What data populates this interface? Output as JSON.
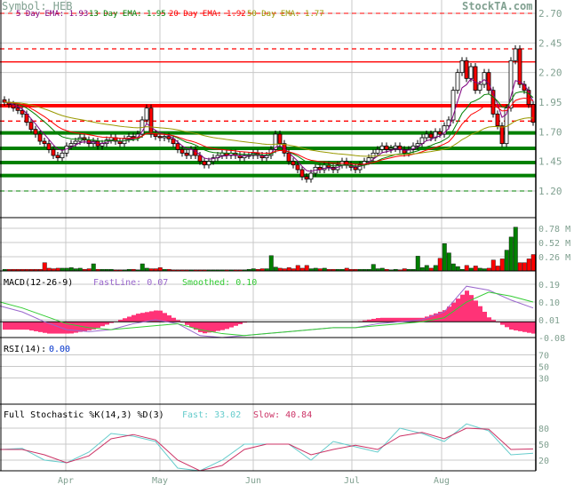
{
  "header": {
    "symbol": "Symbol: HEB",
    "brand": "StockTA.com",
    "ema5": "5 Day EMA: 1.93",
    "ema13": "13 Day EMA: 1.95",
    "ema20": "20 Day EMA: 1.92",
    "ema50": "50 Day EMA: 1.77"
  },
  "colors": {
    "ema5": "#800080",
    "ema13": "#008000",
    "ema20": "#ff0000",
    "ema50": "#999900",
    "down": "#ff0000",
    "up_volume": "#008000",
    "axis_text": "#80a090",
    "fast": "#66cccc",
    "slow": "#cc3366",
    "macd_fast": "#9966cc",
    "macd_slow": "#33cc33",
    "histogram": "#ff3377"
  },
  "chart_data": [
    {
      "type": "candlestick",
      "name": "price",
      "ylim": [
        1.2,
        2.7
      ],
      "ticks": [
        "2.70",
        "2.45",
        "2.20",
        "1.95",
        "1.70",
        "1.45",
        "1.20"
      ],
      "resistance_lines": [
        2.4,
        2.29,
        1.92,
        1.79
      ],
      "support_lines": [
        1.69,
        1.56,
        1.44,
        1.33,
        1.2
      ],
      "close": [
        1.95,
        1.93,
        1.9,
        1.88,
        1.85,
        1.78,
        1.72,
        1.68,
        1.62,
        1.6,
        1.55,
        1.5,
        1.48,
        1.52,
        1.58,
        1.6,
        1.62,
        1.65,
        1.63,
        1.6,
        1.62,
        1.58,
        1.6,
        1.63,
        1.65,
        1.62,
        1.6,
        1.64,
        1.66,
        1.65,
        1.68,
        1.8,
        1.9,
        1.68,
        1.66,
        1.65,
        1.66,
        1.64,
        1.6,
        1.55,
        1.52,
        1.5,
        1.55,
        1.5,
        1.45,
        1.42,
        1.45,
        1.48,
        1.5,
        1.52,
        1.5,
        1.52,
        1.5,
        1.48,
        1.5,
        1.5,
        1.52,
        1.5,
        1.48,
        1.5,
        1.55,
        1.68,
        1.6,
        1.52,
        1.45,
        1.42,
        1.38,
        1.32,
        1.3,
        1.35,
        1.4,
        1.38,
        1.42,
        1.4,
        1.38,
        1.42,
        1.45,
        1.42,
        1.4,
        1.38,
        1.42,
        1.45,
        1.48,
        1.52,
        1.55,
        1.58,
        1.55,
        1.56,
        1.58,
        1.55,
        1.52,
        1.55,
        1.58,
        1.6,
        1.65,
        1.68,
        1.65,
        1.7,
        1.68,
        1.75,
        1.8,
        2.05,
        2.2,
        2.3,
        2.15,
        2.25,
        2.05,
        2.1,
        2.2,
        2.05,
        1.85,
        1.75,
        1.6,
        1.9,
        2.3,
        2.4,
        2.1,
        2.05,
        1.93,
        1.78
      ]
    },
    {
      "type": "bar",
      "name": "volume",
      "unit": "M",
      "ylim": [
        0,
        0.85
      ],
      "ticks": [
        "0.78 M",
        "0.52 M",
        "0.26 M"
      ],
      "values": [
        0.03,
        0.03,
        0.03,
        0.03,
        0.03,
        0.03,
        0.03,
        0.03,
        0.03,
        0.15,
        0.05,
        0.04,
        0.05,
        0.05,
        0.05,
        0.06,
        0.04,
        0.05,
        0.03,
        0.04,
        0.13,
        0.03,
        0.03,
        0.03,
        0.03,
        0.02,
        0.02,
        0.02,
        0.03,
        0.03,
        0.02,
        0.13,
        0.05,
        0.04,
        0.04,
        0.06,
        0.03,
        0.03,
        0.02,
        0.02,
        0.02,
        0.02,
        0.02,
        0.02,
        0.02,
        0.02,
        0.02,
        0.02,
        0.02,
        0.02,
        0.02,
        0.02,
        0.02,
        0.02,
        0.02,
        0.03,
        0.04,
        0.03,
        0.04,
        0.04,
        0.28,
        0.07,
        0.05,
        0.04,
        0.06,
        0.04,
        0.1,
        0.05,
        0.1,
        0.04,
        0.05,
        0.04,
        0.05,
        0.03,
        0.03,
        0.03,
        0.03,
        0.05,
        0.03,
        0.03,
        0.03,
        0.03,
        0.03,
        0.12,
        0.04,
        0.05,
        0.03,
        0.02,
        0.03,
        0.02,
        0.04,
        0.03,
        0.03,
        0.27,
        0.06,
        0.1,
        0.05,
        0.1,
        0.23,
        0.5,
        0.33,
        0.13,
        0.08,
        0.03,
        0.1,
        0.05,
        0.09,
        0.05,
        0.04,
        0.05,
        0.2,
        0.09,
        0.22,
        0.38,
        0.62,
        0.8,
        0.15,
        0.15,
        0.22,
        0.3
      ]
    },
    {
      "type": "line",
      "name": "macd",
      "label": "MACD(12-26-9)",
      "fast_label": "FastLine: 0.07",
      "slow_label": "Smoothed: 0.10",
      "ylim": [
        -0.08,
        0.19
      ],
      "ticks": [
        "0.19",
        "0.10",
        "0.01",
        "-0.08"
      ],
      "fast": [
        0.08,
        0.05,
        0.0,
        -0.04,
        -0.05,
        -0.04,
        -0.01,
        0.01,
        -0.01,
        -0.07,
        -0.08,
        -0.07,
        -0.06,
        -0.05,
        -0.04,
        -0.03,
        -0.03,
        -0.01,
        0.0,
        0.01,
        0.05,
        0.18,
        0.16,
        0.11,
        0.07
      ],
      "slow": [
        0.1,
        0.07,
        0.03,
        -0.01,
        -0.03,
        -0.04,
        -0.03,
        -0.02,
        -0.01,
        -0.04,
        -0.06,
        -0.07,
        -0.06,
        -0.05,
        -0.04,
        -0.03,
        -0.03,
        -0.02,
        -0.01,
        0.0,
        0.02,
        0.1,
        0.15,
        0.13,
        0.1
      ]
    },
    {
      "type": "line",
      "name": "rsi",
      "label": "RSI(14):",
      "value": "0.00",
      "ylim": [
        0,
        100
      ],
      "ticks": [
        "70",
        "50",
        "30"
      ]
    },
    {
      "type": "line",
      "name": "stochastic",
      "label": "Full Stochastic %K(14,3) %D(3)",
      "fast_label": "Fast: 33.02",
      "slow_label": "Slow: 40.84",
      "ylim": [
        0,
        100
      ],
      "ticks": [
        "80",
        "50",
        "20"
      ],
      "fast": [
        40,
        42,
        20,
        15,
        35,
        70,
        65,
        55,
        5,
        0,
        20,
        50,
        50,
        50,
        20,
        55,
        45,
        35,
        80,
        70,
        55,
        88,
        75,
        30,
        33
      ],
      "slow": [
        40,
        40,
        30,
        15,
        28,
        60,
        68,
        58,
        20,
        0,
        10,
        40,
        50,
        50,
        30,
        40,
        48,
        40,
        65,
        72,
        60,
        80,
        78,
        40,
        41
      ]
    }
  ],
  "x_axis": {
    "months": [
      "Apr",
      "May",
      "Jun",
      "Jul",
      "Aug"
    ]
  }
}
